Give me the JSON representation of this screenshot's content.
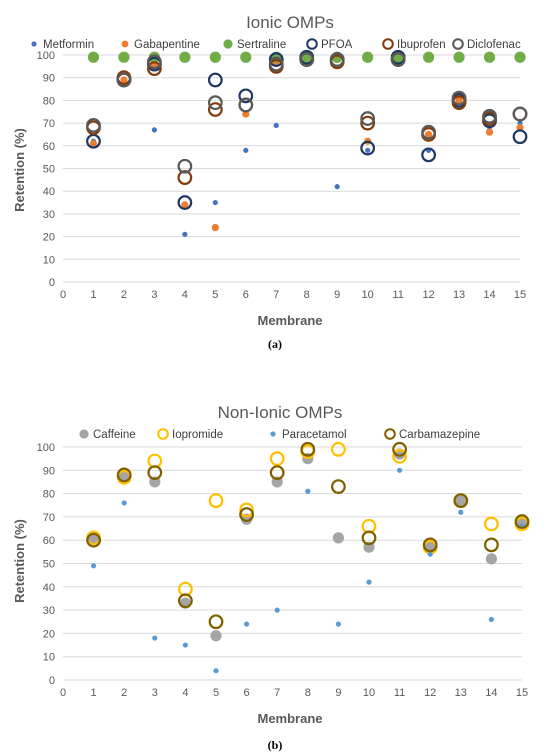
{
  "chart_data": [
    {
      "type": "scatter",
      "title": "Ionic OMPs",
      "panel_label": "(a)",
      "xlabel": "Membrane",
      "ylabel": "Retention (%)",
      "xlim": [
        0,
        15
      ],
      "ylim": [
        0,
        100
      ],
      "xticks": [
        "0",
        "1",
        "2",
        "3",
        "4",
        "5",
        "6",
        "7",
        "8",
        "9",
        "10",
        "11",
        "12",
        "13",
        "14",
        "15"
      ],
      "yticks": [
        "0",
        "10",
        "20",
        "30",
        "40",
        "50",
        "60",
        "70",
        "80",
        "90",
        "100"
      ],
      "grid": true,
      "legend_position": "top",
      "x": [
        1,
        2,
        3,
        4,
        5,
        6,
        7,
        8,
        9,
        10,
        11,
        12,
        13,
        14,
        15
      ],
      "series": [
        {
          "name": "Metformin",
          "color": "#4472c4",
          "marker": "small-dot",
          "values": [
            62,
            89,
            67,
            21,
            35,
            58,
            69,
            98,
            42,
            58,
            98,
            58,
            81,
            67,
            70
          ]
        },
        {
          "name": "Gabapentine",
          "color": "#ed7d31",
          "marker": "dot",
          "values": [
            61,
            89,
            95,
            34,
            24,
            74,
            97,
            98,
            98,
            62,
            97,
            65,
            80,
            66,
            68
          ]
        },
        {
          "name": "Sertraline",
          "color": "#70ad47",
          "marker": "big-dot",
          "values": [
            99,
            99,
            99,
            99,
            99,
            99,
            99,
            99,
            99,
            99,
            99,
            99,
            99,
            99,
            99
          ]
        },
        {
          "name": "PFOA",
          "color": "#1f3864",
          "marker": "ring",
          "values": [
            62,
            89,
            96,
            35,
            89,
            82,
            98,
            99,
            98,
            59,
            99,
            56,
            80,
            71,
            64
          ]
        },
        {
          "name": "Ibuprofen",
          "color": "#843c0c",
          "marker": "ring",
          "values": [
            68,
            90,
            94,
            46,
            76,
            78,
            95,
            98,
            97,
            70,
            98,
            65,
            79,
            72,
            74
          ]
        },
        {
          "name": "Diclofenac",
          "color": "#595959",
          "marker": "ring",
          "values": [
            69,
            89,
            97,
            51,
            79,
            78,
            96,
            98,
            98,
            72,
            98,
            66,
            81,
            73,
            74
          ]
        }
      ]
    },
    {
      "type": "scatter",
      "title": "Non-Ionic OMPs",
      "panel_label": "(b)",
      "xlabel": "Membrane",
      "ylabel": "Retention (%)",
      "xlim": [
        0,
        15
      ],
      "ylim": [
        0,
        100
      ],
      "xticks": [
        "0",
        "1",
        "2",
        "3",
        "4",
        "5",
        "6",
        "7",
        "8",
        "9",
        "10",
        "11",
        "12",
        "13",
        "14",
        "15"
      ],
      "yticks": [
        "0",
        "10",
        "20",
        "30",
        "40",
        "50",
        "60",
        "70",
        "80",
        "90",
        "100"
      ],
      "grid": true,
      "legend_position": "top",
      "x": [
        1,
        2,
        3,
        4,
        5,
        6,
        7,
        8,
        9,
        10,
        11,
        12,
        13,
        14,
        15
      ],
      "series": [
        {
          "name": "Caffeine",
          "color": "#a5a5a5",
          "marker": "big-dot",
          "values": [
            61,
            88,
            85,
            33,
            19,
            69,
            85,
            95,
            61,
            57,
            97,
            58,
            77,
            52,
            68
          ]
        },
        {
          "name": "Iopromide",
          "color": "#ffc000",
          "marker": "ring",
          "values": [
            61,
            87,
            94,
            39,
            77,
            73,
            95,
            98,
            99,
            66,
            96,
            57,
            77,
            67,
            67
          ]
        },
        {
          "name": "Paracetamol",
          "color": "#5b9bd5",
          "marker": "small-dot",
          "values": [
            49,
            76,
            18,
            15,
            4,
            24,
            30,
            81,
            24,
            42,
            90,
            54,
            72,
            26,
            66
          ]
        },
        {
          "name": "Carbamazepine",
          "color": "#7f6000",
          "marker": "ring",
          "values": [
            60,
            88,
            89,
            34,
            25,
            71,
            89,
            99,
            83,
            61,
            99,
            58,
            77,
            58,
            68
          ]
        }
      ]
    }
  ]
}
